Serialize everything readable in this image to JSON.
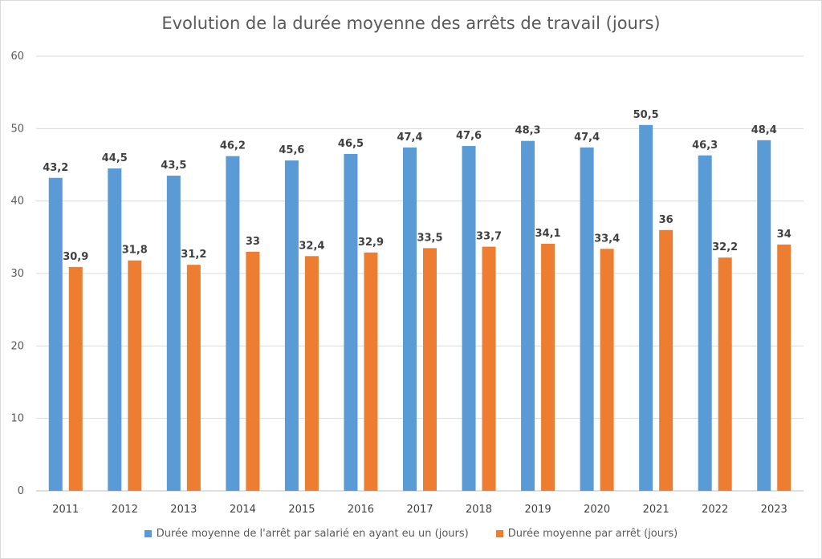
{
  "chart_data": {
    "type": "bar",
    "title": "Evolution de la durée moyenne des arrêts de travail (jours)",
    "categories": [
      "2011",
      "2012",
      "2013",
      "2014",
      "2015",
      "2016",
      "2017",
      "2018",
      "2019",
      "2020",
      "2021",
      "2022",
      "2023"
    ],
    "series": [
      {
        "name": "Durée moyenne de l'arrêt par salarié en ayant eu un (jours)",
        "color": "#5b9bd5",
        "values": [
          43.2,
          44.5,
          43.5,
          46.2,
          45.6,
          46.5,
          47.4,
          47.6,
          48.3,
          47.4,
          50.5,
          46.3,
          48.4
        ],
        "labels": [
          "43,2",
          "44,5",
          "43,5",
          "46,2",
          "45,6",
          "46,5",
          "47,4",
          "47,6",
          "48,3",
          "47,4",
          "50,5",
          "46,3",
          "48,4"
        ]
      },
      {
        "name": "Durée moyenne par arrêt (jours)",
        "color": "#ed7d31",
        "values": [
          30.9,
          31.8,
          31.2,
          33,
          32.4,
          32.9,
          33.5,
          33.7,
          34.1,
          33.4,
          36,
          32.2,
          34
        ],
        "labels": [
          "30,9",
          "31,8",
          "31,2",
          "33",
          "32,4",
          "32,9",
          "33,5",
          "33,7",
          "34,1",
          "33,4",
          "36",
          "32,2",
          "34"
        ]
      }
    ],
    "ylim": [
      0,
      60
    ],
    "yticks": [
      0,
      10,
      20,
      30,
      40,
      50,
      60
    ],
    "grid": true,
    "legend": "bottom"
  }
}
